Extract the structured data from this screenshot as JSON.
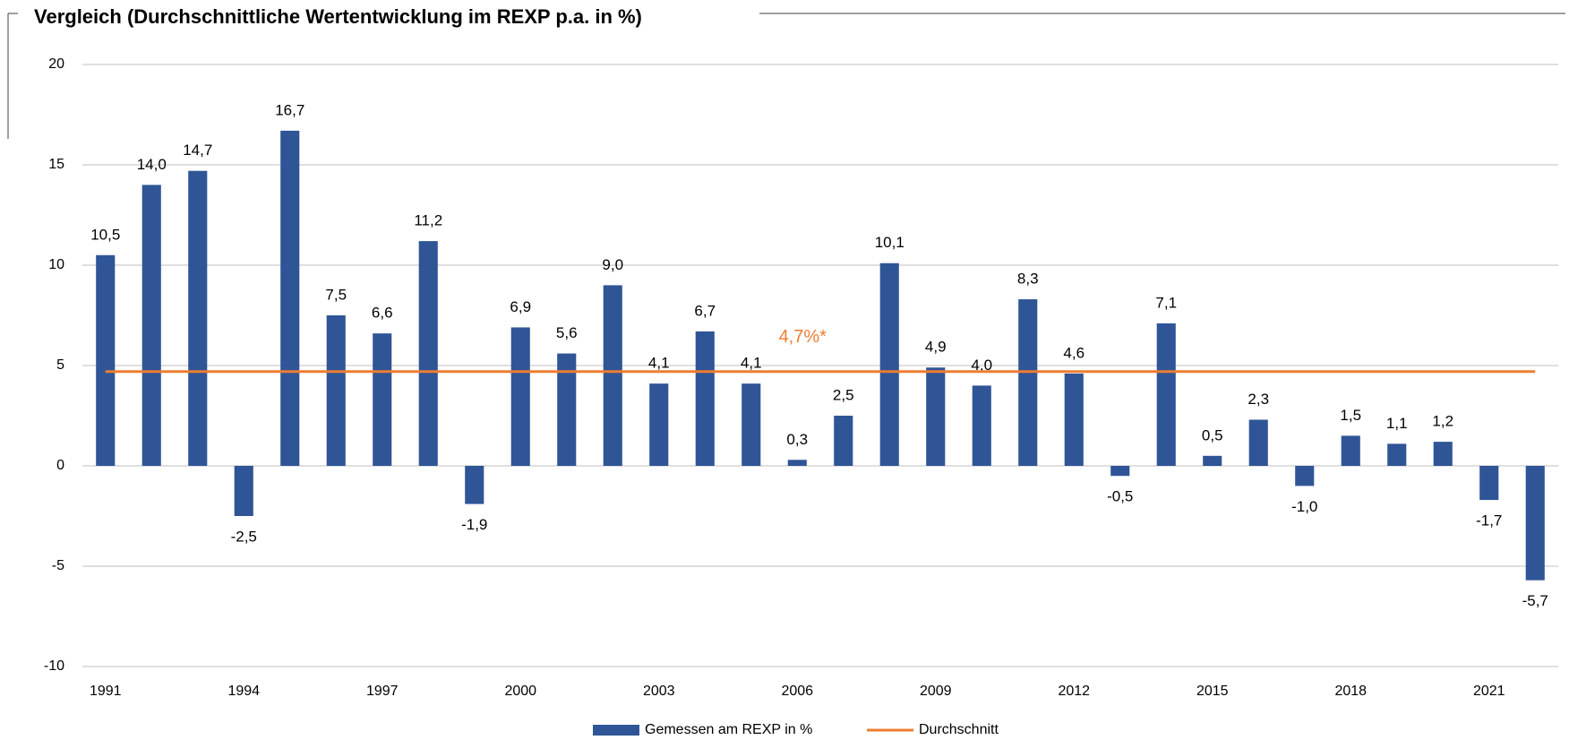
{
  "chart_data": {
    "type": "bar",
    "title": "Vergleich (Durchschnittliche Wertentwicklung im REXP p.a. in %)",
    "categories": [
      "1991",
      null,
      null,
      "1994",
      null,
      null,
      "1997",
      null,
      null,
      "2000",
      null,
      null,
      "2003",
      null,
      null,
      "2006",
      null,
      null,
      "2009",
      null,
      null,
      "2012",
      null,
      null,
      "2015",
      null,
      null,
      "2018",
      null,
      null,
      "2021",
      null
    ],
    "series": [
      {
        "name": "Gemessen am REXP in %",
        "color": "#2f5597",
        "type": "bar",
        "values": [
          10.5,
          14.0,
          14.7,
          -2.5,
          16.7,
          7.5,
          6.6,
          11.2,
          -1.9,
          6.9,
          5.6,
          9.0,
          4.1,
          6.7,
          4.1,
          0.3,
          2.5,
          10.1,
          4.9,
          4.0,
          8.3,
          4.6,
          -0.5,
          7.1,
          0.5,
          2.3,
          -1.0,
          1.5,
          1.1,
          1.2,
          -1.7,
          -5.7
        ],
        "value_labels": [
          "10,5",
          "14,0",
          "14,7",
          "-2,5",
          "16,7",
          "7,5",
          "6,6",
          "11,2",
          "-1,9",
          "6,9",
          "5,6",
          "9,0",
          "4,1",
          "6,7",
          "4,1",
          "0,3",
          "2,5",
          "10,1",
          "4,9",
          "4,0",
          "8,3",
          "4,6",
          "-0,5",
          "7,1",
          "0,5",
          "2,3",
          "-1,0",
          "1,5",
          "1,1",
          "1,2",
          "-1,7",
          "-5,7"
        ]
      },
      {
        "name": "Durchschnitt",
        "color": "#ed7d31",
        "type": "line",
        "values": [
          4.7,
          4.7,
          4.7,
          4.7,
          4.7,
          4.7,
          4.7,
          4.7,
          4.7,
          4.7,
          4.7,
          4.7,
          4.7,
          4.7,
          4.7,
          4.7,
          4.7,
          4.7,
          4.7,
          4.7,
          4.7,
          4.7,
          4.7,
          4.7,
          4.7,
          4.7,
          4.7,
          4.7,
          4.7,
          4.7,
          4.7,
          4.7
        ]
      }
    ],
    "annotation": {
      "text": "4,7%*",
      "value": 4.7,
      "color": "#ed7d31"
    },
    "ylim": [
      -10,
      20
    ],
    "yticks": [
      -10,
      -5,
      0,
      5,
      10,
      15,
      20
    ],
    "grid": true,
    "legend": "bottom"
  }
}
